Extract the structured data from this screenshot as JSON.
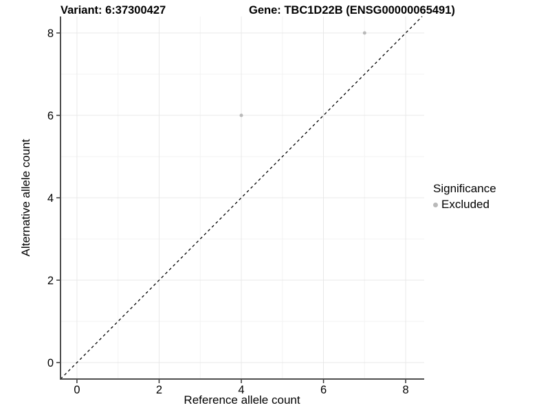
{
  "titles": {
    "variant": "Variant: 6:37300427",
    "gene": "Gene: TBC1D22B (ENSG00000065491)"
  },
  "chart_data": {
    "type": "scatter",
    "xlabel": "Reference allele count",
    "ylabel": "Alternative allele count",
    "xlim": [
      -0.4,
      8.45
    ],
    "ylim": [
      -0.4,
      8.4
    ],
    "xticks": [
      0,
      2,
      4,
      6,
      8
    ],
    "yticks": [
      0,
      2,
      4,
      6,
      8
    ],
    "x_minor_ticks": [
      1,
      3,
      5,
      7
    ],
    "y_minor_ticks": [
      1,
      3,
      5,
      7
    ],
    "grid": "on",
    "points": [
      {
        "x": 4,
        "y": 6,
        "significance": "Excluded"
      },
      {
        "x": 7,
        "y": 8,
        "significance": "Excluded"
      }
    ],
    "abline": {
      "slope": 1,
      "intercept": 0,
      "style": "dashed"
    },
    "legend": {
      "title": "Significance",
      "position": "right",
      "items": [
        {
          "label": "Excluded",
          "color": "#b9b9b9"
        }
      ]
    },
    "colors": {
      "point": "#b9b9b9",
      "abline": "#000000",
      "grid_major": "#e8e8e8",
      "grid_minor": "#f3f3f3",
      "axis_line": "#4d4d4d",
      "tick_mark": "#333333",
      "text": "#000000",
      "background": "#ffffff"
    }
  }
}
